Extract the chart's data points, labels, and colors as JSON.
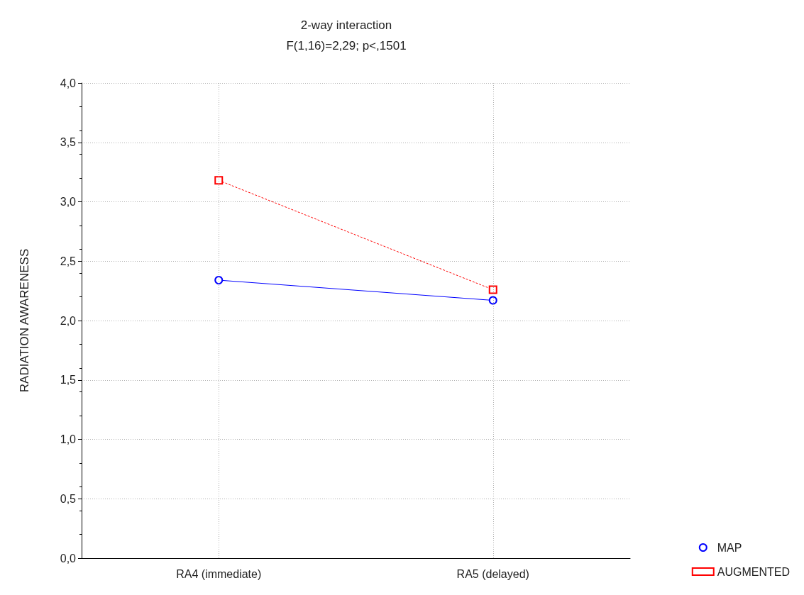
{
  "chart_data": {
    "type": "line",
    "title": "2-way interaction",
    "subtitle": "F(1,16)=2,29; p<,1501",
    "ylabel": "RADIATION AWARENESS",
    "categories": [
      "RA4 (immediate)",
      "RA5 (delayed)"
    ],
    "series": [
      {
        "name": "MAP",
        "color": "#0000ff",
        "values": [
          2.34,
          2.17
        ],
        "marker": "circle",
        "line_style": "solid"
      },
      {
        "name": "AUGMENTED",
        "color": "#ff0000",
        "values": [
          3.18,
          2.26
        ],
        "marker": "square",
        "line_style": "dotted"
      }
    ],
    "ylim": [
      0,
      4
    ],
    "yticks": [
      {
        "value": 0,
        "label": "0,0"
      },
      {
        "value": 0.5,
        "label": "0,5"
      },
      {
        "value": 1,
        "label": "1,0"
      },
      {
        "value": 1.5,
        "label": "1,5"
      },
      {
        "value": 2,
        "label": "2,0"
      },
      {
        "value": 2.5,
        "label": "2,5"
      },
      {
        "value": 3,
        "label": "3,0"
      },
      {
        "value": 3.5,
        "label": "3,5"
      },
      {
        "value": 4,
        "label": "4,0"
      }
    ],
    "grid": true,
    "legend": "bottom right"
  }
}
